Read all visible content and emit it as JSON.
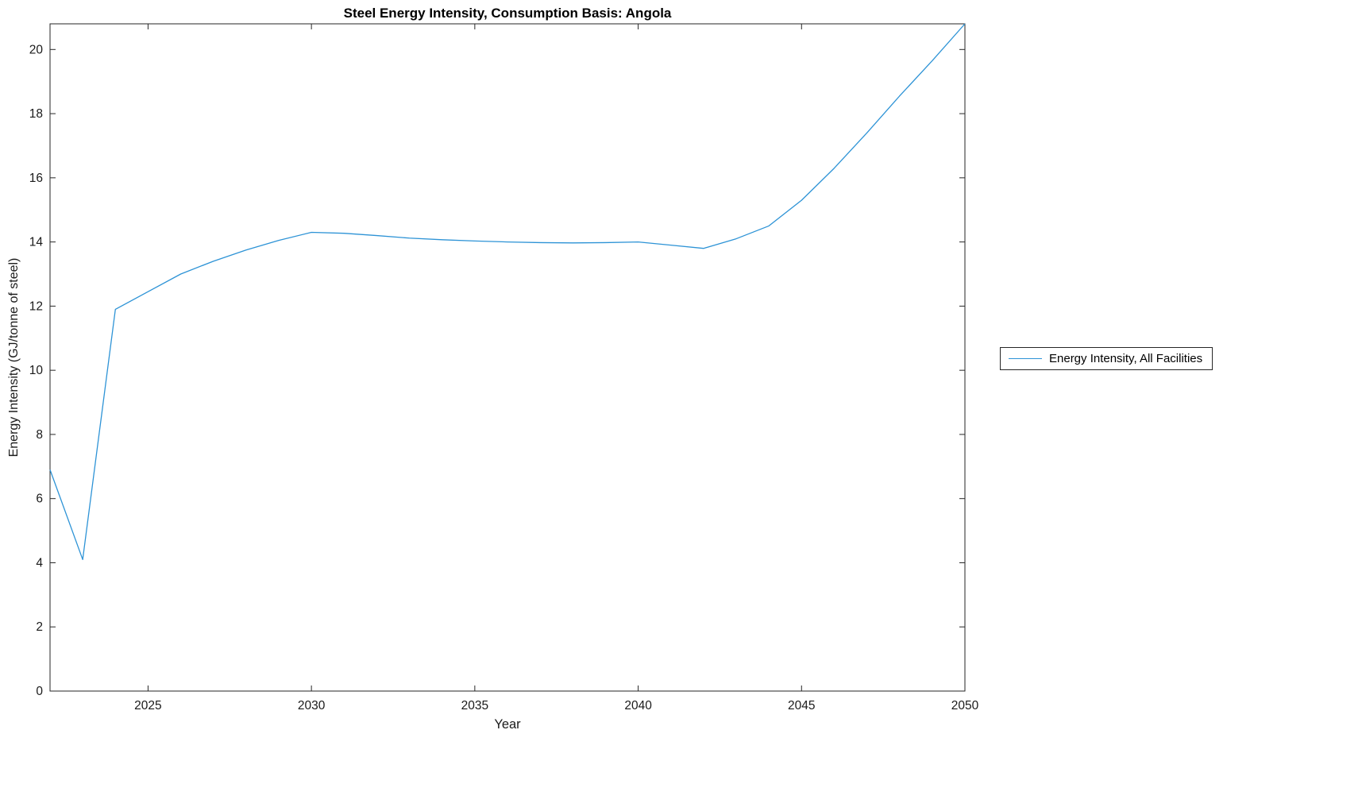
{
  "chart_data": {
    "type": "line",
    "title": "Steel Energy Intensity, Consumption Basis: Angola",
    "xlabel": "Year",
    "ylabel": "Energy Intensity (GJ/tonne of steel)",
    "xlim": [
      2022,
      2050
    ],
    "ylim": [
      0,
      20.8
    ],
    "x_ticks": [
      2025,
      2030,
      2035,
      2040,
      2045,
      2050
    ],
    "y_ticks": [
      0,
      2,
      4,
      6,
      8,
      10,
      12,
      14,
      16,
      18,
      20
    ],
    "grid": false,
    "legend_position": "right-outside",
    "line_color": "#2d93d6",
    "axis_color": "#262626",
    "series": [
      {
        "name": "Energy Intensity, All Facilities",
        "x": [
          2022,
          2023,
          2024,
          2025,
          2026,
          2027,
          2028,
          2029,
          2030,
          2031,
          2032,
          2033,
          2034,
          2035,
          2036,
          2037,
          2038,
          2039,
          2040,
          2041,
          2042,
          2043,
          2044,
          2045,
          2046,
          2047,
          2048,
          2049,
          2050
        ],
        "values": [
          6.9,
          4.1,
          11.9,
          12.45,
          13.0,
          13.4,
          13.75,
          14.05,
          14.3,
          14.27,
          14.2,
          14.12,
          14.07,
          14.03,
          14.0,
          13.98,
          13.97,
          13.98,
          14.0,
          13.9,
          13.8,
          14.1,
          14.5,
          15.3,
          16.3,
          17.4,
          18.55,
          19.65,
          20.8
        ]
      }
    ]
  }
}
